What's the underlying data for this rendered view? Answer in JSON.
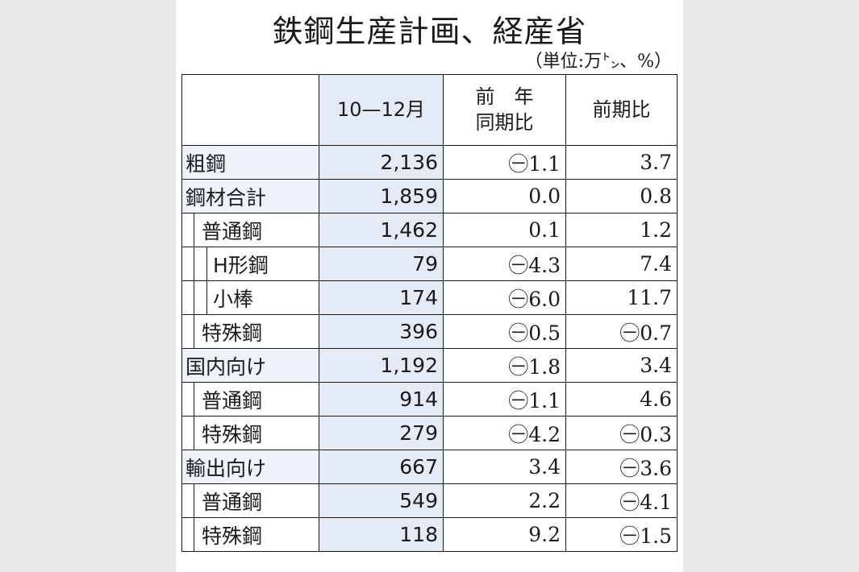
{
  "title": "鉄鋼生産計画、経産省",
  "unit": "（単位:万㌧、%）",
  "header": {
    "col1": "10—12月",
    "col2_line1": "前　年",
    "col2_line2": "同期比",
    "col3": "前期比"
  },
  "rows": [
    {
      "label": "粗鋼",
      "level": 0,
      "v1": "2,136",
      "v2": "㊀1.1",
      "v3": "3.7"
    },
    {
      "label": "鋼材合計",
      "level": 0,
      "v1": "1,859",
      "v2": "0.0",
      "v3": "0.8"
    },
    {
      "label": "普通鋼",
      "level": 1,
      "v1": "1,462",
      "v2": "0.1",
      "v3": "1.2"
    },
    {
      "label": "H形鋼",
      "level": 2,
      "v1": "79",
      "v2": "㊀4.3",
      "v3": "7.4"
    },
    {
      "label": "小棒",
      "level": 2,
      "v1": "174",
      "v2": "㊀6.0",
      "v3": "11.7"
    },
    {
      "label": "特殊鋼",
      "level": 1,
      "v1": "396",
      "v2": "㊀0.5",
      "v3": "㊀0.7"
    },
    {
      "label": "国内向け",
      "level": 0,
      "v1": "1,192",
      "v2": "㊀1.8",
      "v3": "3.4"
    },
    {
      "label": "普通鋼",
      "level": 1,
      "v1": "914",
      "v2": "㊀1.1",
      "v3": "4.6"
    },
    {
      "label": "特殊鋼",
      "level": 1,
      "v1": "279",
      "v2": "㊀4.2",
      "v3": "㊀0.3"
    },
    {
      "label": "輸出向け",
      "level": 0,
      "v1": "667",
      "v2": "3.4",
      "v3": "㊀3.6"
    },
    {
      "label": "普通鋼",
      "level": 1,
      "v1": "549",
      "v2": "2.2",
      "v3": "㊀4.1"
    },
    {
      "label": "特殊鋼",
      "level": 1,
      "v1": "118",
      "v2": "9.2",
      "v3": "㊀1.5"
    }
  ]
}
